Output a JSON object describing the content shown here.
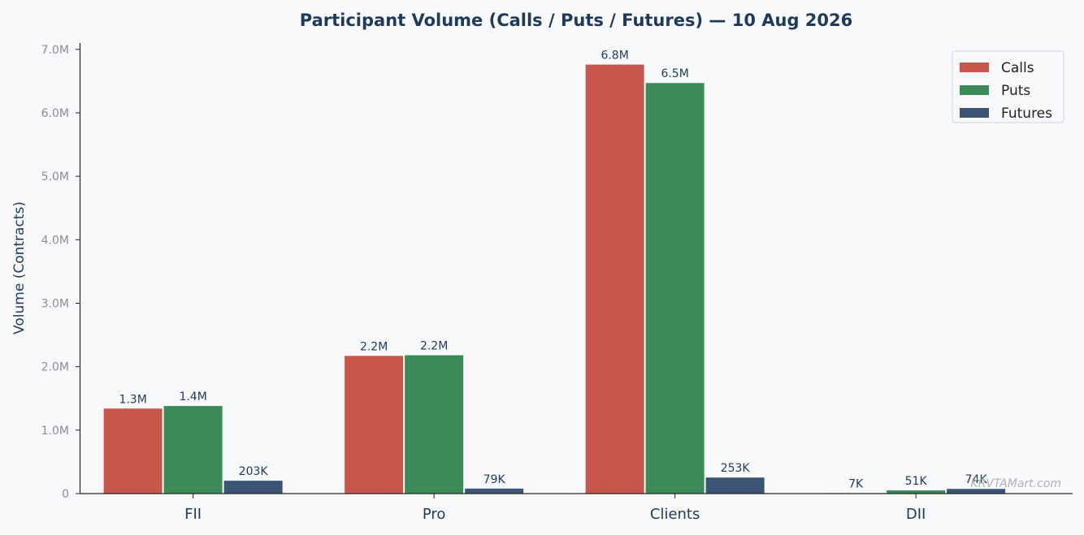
{
  "chart_data": {
    "type": "bar",
    "title": "Participant Volume (Calls / Puts / Futures) — 10 Aug 2026",
    "xlabel": "",
    "ylabel": "Volume (Contracts)",
    "ylim": [
      0,
      7100000
    ],
    "yticks": [
      0,
      1000000,
      2000000,
      3000000,
      4000000,
      5000000,
      6000000,
      7000000
    ],
    "ytick_labels": [
      "0",
      "1.0M",
      "2.0M",
      "3.0M",
      "4.0M",
      "5.0M",
      "6.0M",
      "7.0M"
    ],
    "categories": [
      "FII",
      "Pro",
      "Clients",
      "DII"
    ],
    "series": [
      {
        "name": "Calls",
        "color": "#c8564b",
        "values": [
          1340000,
          2170000,
          6760000,
          7000
        ],
        "labels": [
          "1.3M",
          "2.2M",
          "6.8M",
          "7K"
        ]
      },
      {
        "name": "Puts",
        "color": "#3a8b58",
        "values": [
          1380000,
          2180000,
          6470000,
          51000
        ],
        "labels": [
          "1.4M",
          "2.2M",
          "6.5M",
          "51K"
        ]
      },
      {
        "name": "Futures",
        "color": "#3d5574",
        "values": [
          203000,
          79000,
          253000,
          74000
        ],
        "labels": [
          "203K",
          "79K",
          "253K",
          "74K"
        ]
      }
    ],
    "legend": "top-right",
    "grid": false,
    "watermark": "KRVTAMart.com"
  }
}
